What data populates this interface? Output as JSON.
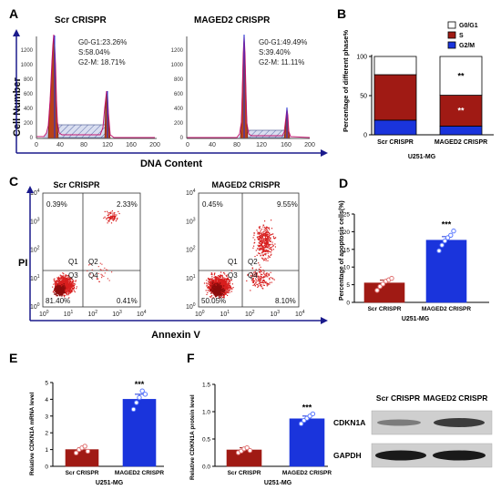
{
  "panels": {
    "A": {
      "letter": "A",
      "left": {
        "title": "Scr CRISPR",
        "g0g1": "G0-G1:23.26%",
        "s": "S:58.04%",
        "g2m": "G2-M:  18.71%"
      },
      "right": {
        "title": "MAGED2 CRISPR",
        "g0g1": "G0-G1:49.49%",
        "s": "S:39.40%",
        "g2m": "G2-M:  11.11%"
      },
      "ylabel": "Cell Number",
      "xlabel": "DNA Content",
      "yticks": [
        "0",
        "200",
        "400",
        "600",
        "800",
        "1000",
        "1200"
      ],
      "xticks": [
        "0",
        "40",
        "80",
        "120",
        "160",
        "200"
      ]
    },
    "B": {
      "letter": "B",
      "group": "U251-MG",
      "sig_g0g1": "**",
      "sig_s": "**"
    },
    "C": {
      "letter": "C",
      "left": {
        "title": "Scr CRISPR",
        "ul": "0.39%",
        "ur": "2.33%",
        "ll": "81.40%",
        "lr": "0.41%"
      },
      "right": {
        "title": "MAGED2 CRISPR",
        "ul": "0.45%",
        "ur": "9.55%",
        "ll": "50.05%",
        "lr": "8.10%"
      },
      "q": [
        "Q1",
        "Q2",
        "Q3",
        "Q4"
      ],
      "ylabel": "PI",
      "xlabel": "Annexin V",
      "ticks_base": "10",
      "exps": [
        "0",
        "1",
        "2",
        "3",
        "4"
      ]
    },
    "D": {
      "letter": "D",
      "group": "U251-MG",
      "sig": "***"
    },
    "E": {
      "letter": "E",
      "group": "U251-MG",
      "sig": "***"
    },
    "F": {
      "letter": "F",
      "group": "U251-MG",
      "sig": "***",
      "blot_headers": [
        "Scr CRISPR",
        "MAGED2 CRISPR"
      ],
      "blot_rows": [
        "CDKN1A",
        "GAPDH"
      ]
    }
  },
  "chart_data": [
    {
      "id": "B",
      "type": "bar",
      "stacked": true,
      "categories": [
        "Scr CRISPR",
        "MAGED2 CRISPR"
      ],
      "series": [
        {
          "name": "G0/G1",
          "values": [
            23.26,
            49.49
          ],
          "color": "#ffffff"
        },
        {
          "name": "S",
          "values": [
            58.04,
            39.4
          ],
          "color": "#a01a14"
        },
        {
          "name": "G2/M",
          "values": [
            18.71,
            11.11
          ],
          "color": "#1a34dc"
        }
      ],
      "ylabel": "Percentage of different phase%",
      "xlabel": "U251-MG",
      "ylim": [
        0,
        100
      ],
      "yticks": [
        0,
        50,
        100
      ],
      "legend": "top-right"
    },
    {
      "id": "D",
      "type": "bar",
      "categories": [
        "Scr CRISPR",
        "MAGED2 CRISPR"
      ],
      "values": [
        5.5,
        17.6
      ],
      "errors": [
        0.8,
        1.0
      ],
      "points": [
        [
          3.4,
          4.5,
          5.2,
          6.0,
          6.4,
          6.8
        ],
        [
          14.6,
          16.2,
          17.4,
          18.3,
          19.0,
          20.2
        ]
      ],
      "colors": [
        "#a01a14",
        "#1a34dc"
      ],
      "ylabel": "Percentage of apoptosis cells(%)",
      "xlabel": "U251-MG",
      "ylim": [
        0,
        25
      ],
      "yticks": [
        0,
        5,
        10,
        15,
        20,
        25
      ]
    },
    {
      "id": "E",
      "type": "bar",
      "categories": [
        "Scr CRISPR",
        "MAGED2 CRISPR"
      ],
      "values": [
        1.0,
        4.0
      ],
      "errors": [
        0.1,
        0.3
      ],
      "points": [
        [
          0.8,
          1.0,
          1.1,
          1.2,
          0.9
        ],
        [
          3.4,
          3.8,
          4.1,
          4.5,
          4.3
        ]
      ],
      "colors": [
        "#a01a14",
        "#1a34dc"
      ],
      "ylabel": "Relative CDKN1A mRNA level",
      "xlabel": "U251-MG",
      "ylim": [
        0,
        5
      ],
      "yticks": [
        0,
        1,
        2,
        3,
        4,
        5
      ]
    },
    {
      "id": "F",
      "type": "bar",
      "categories": [
        "Scr CRISPR",
        "MAGED2 CRISPR"
      ],
      "values": [
        0.3,
        0.87
      ],
      "errors": [
        0.04,
        0.05
      ],
      "points": [
        [
          0.25,
          0.28,
          0.32,
          0.34,
          0.29
        ],
        [
          0.78,
          0.84,
          0.88,
          0.92,
          0.96
        ]
      ],
      "colors": [
        "#a01a14",
        "#1a34dc"
      ],
      "ylabel": "Relative CDKN1A protein level",
      "xlabel": "U251-MG",
      "ylim": [
        0,
        1.5
      ],
      "yticks": [
        0.0,
        0.5,
        1.0,
        1.5
      ]
    }
  ]
}
